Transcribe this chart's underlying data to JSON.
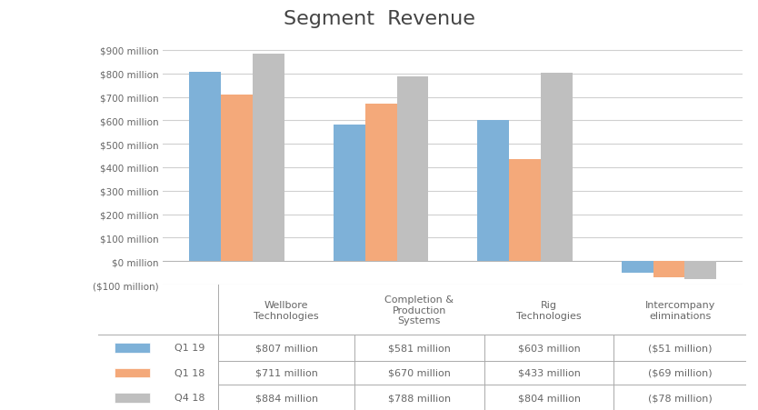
{
  "title": "Segment  Revenue",
  "categories": [
    "Wellbore\nTechnologies",
    "Completion &\nProduction\nSystems",
    "Rig\nTechnologies",
    "Intercompany\neliminations"
  ],
  "series": {
    "Q1 19": [
      807,
      581,
      603,
      -51
    ],
    "Q1 18": [
      711,
      670,
      433,
      -69
    ],
    "Q4 18": [
      884,
      788,
      804,
      -78
    ]
  },
  "colors": {
    "Q1 19": "#7EB1D8",
    "Q1 18": "#F4A97A",
    "Q4 18": "#BFBFBF"
  },
  "yticks": [
    -100,
    0,
    100,
    200,
    300,
    400,
    500,
    600,
    700,
    800,
    900
  ],
  "ytick_labels": [
    "($100 million)",
    "$0 million",
    "$100 million",
    "$200 million",
    "$300 million",
    "$400 million",
    "$500 million",
    "$600 million",
    "$700 million",
    "$800 million",
    "$900 million"
  ],
  "legend_labels": [
    "Q1 19",
    "Q1 18",
    "Q4 18"
  ],
  "table_data": [
    [
      "$807 million",
      "$581 million",
      "$603 million",
      "($51 million)"
    ],
    [
      "$711 million",
      "$670 million",
      "$433 million",
      "($69 million)"
    ],
    [
      "$884 million",
      "$788 million",
      "$804 million",
      "($78 million)"
    ]
  ],
  "col_headers": [
    "Wellbore\nTechnologies",
    "Completion &\nProduction\nSystems",
    "Rig\nTechnologies",
    "Intercompany\neliminations"
  ],
  "background_color": "#FFFFFF",
  "grid_color": "#D0D0D0",
  "ylim": [
    -100,
    950
  ],
  "bar_width": 0.22,
  "title_fontsize": 16
}
